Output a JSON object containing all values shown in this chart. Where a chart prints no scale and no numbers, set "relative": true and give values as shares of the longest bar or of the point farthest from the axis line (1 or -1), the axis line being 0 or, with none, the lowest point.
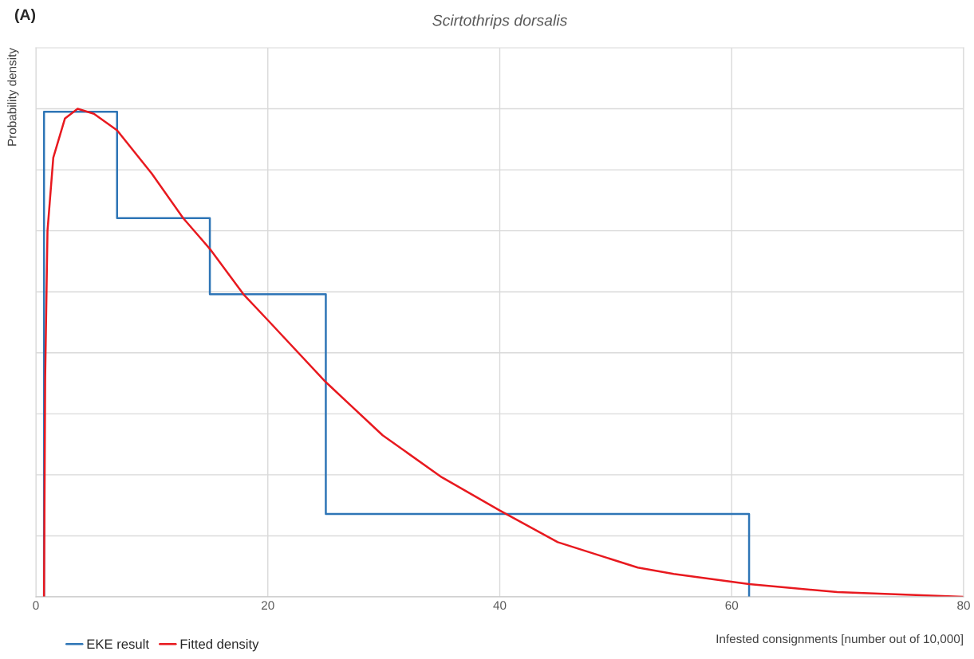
{
  "chart_data": {
    "type": "line",
    "title": "Scirtothrips dorsalis",
    "xlabel": "Infested consignments [number out of 10,000]",
    "ylabel": "Probability density",
    "annotations": [
      "(A)"
    ],
    "relative": true,
    "xlim": [
      0,
      80
    ],
    "xticks": [
      0,
      20,
      40,
      60,
      80
    ],
    "grid": true,
    "legend": "bottom left",
    "line_style": "solid",
    "marker": "none",
    "series": [
      {
        "name": "EKE result",
        "type": "step",
        "color": "#2e75b6",
        "x": [
          0.7,
          0.7,
          7,
          15,
          25,
          61.5
        ],
        "values": [
          0,
          0.994,
          0.776,
          0.62,
          0.17,
          0
        ]
      },
      {
        "name": "Fitted density",
        "color": "#e8191f",
        "x": [
          0.7,
          0.8,
          1.0,
          1.5,
          2.5,
          3.6,
          5,
          7,
          10,
          12.7,
          15,
          17.9,
          20,
          25,
          29.9,
          35,
          40,
          45,
          51.9,
          55,
          61.5,
          69.1,
          80
        ],
        "values": [
          0,
          0.45,
          0.75,
          0.9,
          0.98,
          1.0,
          0.99,
          0.956,
          0.867,
          0.776,
          0.713,
          0.62,
          0.567,
          0.44,
          0.331,
          0.245,
          0.177,
          0.112,
          0.06,
          0.047,
          0.026,
          0.0097,
          0
        ]
      }
    ]
  }
}
